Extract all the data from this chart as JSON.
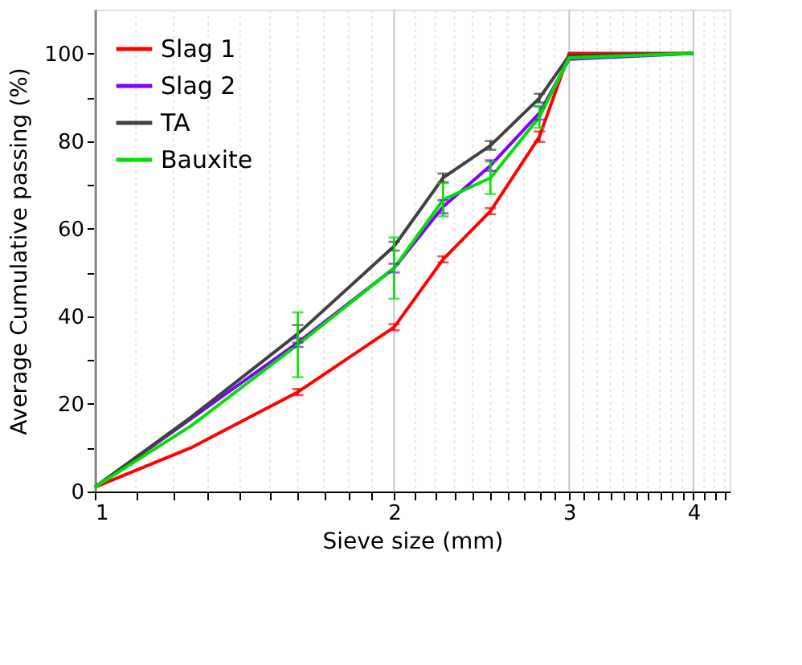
{
  "chart_data": {
    "type": "line",
    "xlabel": "Sieve size (mm)",
    "ylabel": "Average Cumulative passing (%)",
    "log": "x",
    "xlim": [
      1,
      4.35
    ],
    "ylim": [
      0,
      110
    ],
    "xticks": [
      1,
      {
        "value": 1.1,
        "label": null
      },
      {
        "value": 1.2,
        "label": null
      },
      {
        "value": 1.3,
        "label": null
      },
      {
        "value": 1.4,
        "label": null
      },
      {
        "value": 1.5,
        "label": null
      },
      {
        "value": 1.6,
        "label": null
      },
      {
        "value": 1.7,
        "label": null
      },
      {
        "value": 1.8,
        "label": null
      },
      {
        "value": 1.9,
        "label": null
      },
      2,
      {
        "value": 2.1,
        "label": null
      },
      {
        "value": 2.2,
        "label": null
      },
      {
        "value": 2.3,
        "label": null
      },
      {
        "value": 2.4,
        "label": null
      },
      {
        "value": 2.5,
        "label": null
      },
      {
        "value": 2.6,
        "label": null
      },
      {
        "value": 2.7,
        "label": null
      },
      {
        "value": 2.8,
        "label": null
      },
      {
        "value": 2.9,
        "label": null
      },
      3,
      {
        "value": 3.1,
        "label": null
      },
      {
        "value": 3.2,
        "label": null
      },
      {
        "value": 3.3,
        "label": null
      },
      {
        "value": 3.4,
        "label": null
      },
      {
        "value": 3.5,
        "label": null
      },
      {
        "value": 3.6,
        "label": null
      },
      {
        "value": 3.7,
        "label": null
      },
      {
        "value": 3.8,
        "label": null
      },
      {
        "value": 3.9,
        "label": null
      },
      4,
      {
        "value": 4.1,
        "label": null
      },
      {
        "value": 4.2,
        "label": null
      },
      {
        "value": 4.3,
        "label": null
      }
    ],
    "yticks": [
      0,
      {
        "value": 10,
        "label": null
      },
      20,
      {
        "value": 30,
        "label": null
      },
      40,
      {
        "value": 50,
        "label": null
      },
      60,
      {
        "value": 70,
        "label": null
      },
      80,
      {
        "value": 90,
        "label": null
      },
      100
    ],
    "grid": "x",
    "legend": "top left",
    "line_style": "solid",
    "x": [
      1,
      1.25,
      1.6,
      2,
      2.24,
      2.5,
      2.8,
      3,
      4
    ],
    "series": [
      {
        "name": "Slag 1",
        "color": "#ff0000",
        "values": [
          1,
          10,
          22.7,
          37.5,
          53,
          64,
          81,
          100,
          100
        ],
        "errors": [
          null,
          null,
          0.7,
          0.7,
          0.7,
          0.7,
          1.2,
          null,
          null
        ]
      },
      {
        "name": "Slag 2",
        "color": "#8000ff",
        "x": [
          1,
          1.6,
          2,
          2.24,
          2.5,
          2.8,
          3,
          4
        ],
        "values": [
          1,
          34,
          51,
          65,
          74.4,
          86.4,
          98.7,
          100
        ],
        "errors": [
          null,
          1,
          1,
          1.5,
          1.2,
          1.5,
          null,
          null
        ]
      },
      {
        "name": "TA",
        "color": "#404040",
        "values": [
          1,
          17,
          36,
          56,
          71.6,
          79,
          89.8,
          99.5,
          100
        ],
        "errors": [
          null,
          null,
          2,
          1,
          1,
          1,
          1,
          null,
          null
        ]
      },
      {
        "name": "Bauxite",
        "color": "#00e000",
        "values": [
          1,
          15,
          33.5,
          51,
          66.6,
          71.6,
          85.5,
          99,
          100
        ],
        "errors": [
          null,
          null,
          7.4,
          7,
          3.8,
          3.7,
          2.5,
          null,
          null
        ]
      }
    ]
  }
}
